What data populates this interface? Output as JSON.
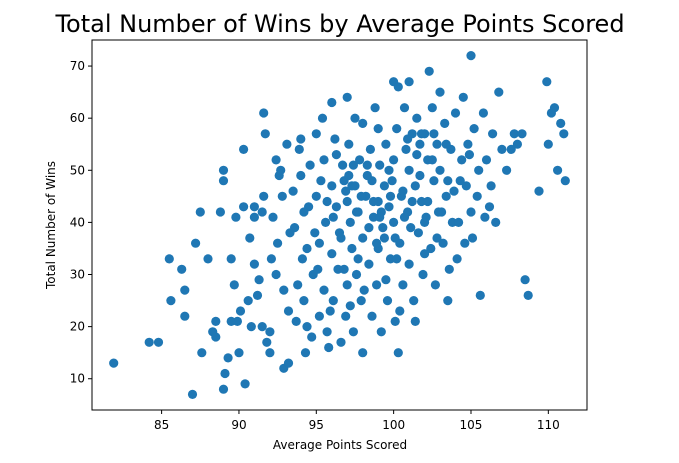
{
  "chart_data": {
    "type": "scatter",
    "title": "Total Number of Wins by Average Points Scored",
    "xlabel": "Average Points Scored",
    "ylabel": "Total Number of Wins",
    "xlim": [
      80.5,
      112.5
    ],
    "ylim": [
      4,
      75
    ],
    "xticks": [
      85,
      90,
      95,
      100,
      105,
      110
    ],
    "yticks": [
      10,
      20,
      30,
      40,
      50,
      60,
      70
    ],
    "grid": false,
    "marker_color": "#1f77b4",
    "points": [
      [
        81.9,
        13
      ],
      [
        84.2,
        17
      ],
      [
        84.8,
        17
      ],
      [
        85.5,
        33
      ],
      [
        85.6,
        25
      ],
      [
        86.3,
        31
      ],
      [
        86.5,
        22
      ],
      [
        86.5,
        27
      ],
      [
        87.0,
        7
      ],
      [
        87.2,
        36
      ],
      [
        87.5,
        42
      ],
      [
        87.6,
        15
      ],
      [
        88.0,
        33
      ],
      [
        88.3,
        19
      ],
      [
        88.5,
        18
      ],
      [
        88.5,
        21
      ],
      [
        88.8,
        42
      ],
      [
        89.0,
        48
      ],
      [
        89.0,
        50
      ],
      [
        89.0,
        8
      ],
      [
        89.1,
        11
      ],
      [
        89.3,
        14
      ],
      [
        89.5,
        21
      ],
      [
        89.5,
        33
      ],
      [
        89.7,
        28
      ],
      [
        89.9,
        21
      ],
      [
        90.0,
        15
      ],
      [
        90.1,
        23
      ],
      [
        90.3,
        54
      ],
      [
        90.3,
        43
      ],
      [
        90.4,
        9
      ],
      [
        90.6,
        25
      ],
      [
        90.8,
        20
      ],
      [
        91.0,
        43
      ],
      [
        91.0,
        41
      ],
      [
        91.0,
        32
      ],
      [
        91.2,
        26
      ],
      [
        91.5,
        20
      ],
      [
        91.5,
        42
      ],
      [
        91.6,
        61
      ],
      [
        91.7,
        57
      ],
      [
        91.8,
        17
      ],
      [
        92.0,
        15
      ],
      [
        92.0,
        19
      ],
      [
        92.2,
        41
      ],
      [
        92.4,
        30
      ],
      [
        92.5,
        36
      ],
      [
        92.6,
        49
      ],
      [
        92.7,
        50
      ],
      [
        92.8,
        45
      ],
      [
        92.9,
        12
      ],
      [
        93.1,
        55
      ],
      [
        93.2,
        23
      ],
      [
        93.2,
        13
      ],
      [
        93.5,
        46
      ],
      [
        93.6,
        39
      ],
      [
        93.8,
        28
      ],
      [
        94.0,
        56
      ],
      [
        94.0,
        49
      ],
      [
        94.1,
        33
      ],
      [
        94.2,
        25
      ],
      [
        94.3,
        15
      ],
      [
        94.4,
        20
      ],
      [
        94.5,
        43
      ],
      [
        94.6,
        51
      ],
      [
        94.8,
        30
      ],
      [
        94.9,
        38
      ],
      [
        95.0,
        57
      ],
      [
        95.0,
        45
      ],
      [
        95.2,
        22
      ],
      [
        95.2,
        36
      ],
      [
        95.4,
        60
      ],
      [
        95.5,
        52
      ],
      [
        95.5,
        27
      ],
      [
        95.6,
        40
      ],
      [
        95.7,
        19
      ],
      [
        95.8,
        16
      ],
      [
        96.0,
        63
      ],
      [
        96.0,
        47
      ],
      [
        96.0,
        34
      ],
      [
        96.1,
        25
      ],
      [
        96.2,
        56
      ],
      [
        96.3,
        43
      ],
      [
        96.4,
        31
      ],
      [
        96.5,
        38
      ],
      [
        96.6,
        17
      ],
      [
        96.7,
        51
      ],
      [
        96.8,
        48
      ],
      [
        96.9,
        22
      ],
      [
        97.0,
        64
      ],
      [
        97.0,
        44
      ],
      [
        97.0,
        28
      ],
      [
        97.1,
        55
      ],
      [
        97.2,
        40
      ],
      [
        97.3,
        35
      ],
      [
        97.4,
        19
      ],
      [
        97.5,
        60
      ],
      [
        97.5,
        47
      ],
      [
        97.6,
        30
      ],
      [
        97.7,
        42
      ],
      [
        97.8,
        52
      ],
      [
        97.9,
        25
      ],
      [
        98.0,
        59
      ],
      [
        98.0,
        37
      ],
      [
        98.0,
        15
      ],
      [
        98.2,
        45
      ],
      [
        98.3,
        49
      ],
      [
        98.4,
        32
      ],
      [
        98.5,
        54
      ],
      [
        98.6,
        22
      ],
      [
        98.7,
        41
      ],
      [
        98.8,
        62
      ],
      [
        98.9,
        28
      ],
      [
        99.0,
        58
      ],
      [
        99.0,
        44
      ],
      [
        99.0,
        35
      ],
      [
        99.1,
        51
      ],
      [
        99.2,
        19
      ],
      [
        99.3,
        39
      ],
      [
        99.4,
        47
      ],
      [
        99.5,
        55
      ],
      [
        99.6,
        25
      ],
      [
        99.7,
        43
      ],
      [
        99.8,
        33
      ],
      [
        99.9,
        48
      ],
      [
        100.0,
        67
      ],
      [
        100.0,
        52
      ],
      [
        100.0,
        40
      ],
      [
        100.1,
        21
      ],
      [
        100.2,
        58
      ],
      [
        100.3,
        66
      ],
      [
        100.3,
        15
      ],
      [
        100.4,
        36
      ],
      [
        100.5,
        45
      ],
      [
        100.6,
        28
      ],
      [
        100.7,
        62
      ],
      [
        100.8,
        54
      ],
      [
        100.9,
        42
      ],
      [
        101.0,
        67
      ],
      [
        101.0,
        50
      ],
      [
        101.0,
        32
      ],
      [
        101.2,
        57
      ],
      [
        101.3,
        25
      ],
      [
        101.4,
        47
      ],
      [
        101.5,
        60
      ],
      [
        101.6,
        38
      ],
      [
        101.7,
        55
      ],
      [
        101.8,
        44
      ],
      [
        101.9,
        30
      ],
      [
        102.0,
        57
      ],
      [
        102.0,
        40
      ],
      [
        102.2,
        52
      ],
      [
        102.3,
        69
      ],
      [
        102.4,
        35
      ],
      [
        102.5,
        62
      ],
      [
        102.6,
        48
      ],
      [
        102.7,
        28
      ],
      [
        102.8,
        55
      ],
      [
        102.9,
        42
      ],
      [
        103.0,
        65
      ],
      [
        103.0,
        50
      ],
      [
        103.2,
        36
      ],
      [
        103.3,
        59
      ],
      [
        103.4,
        45
      ],
      [
        103.5,
        25
      ],
      [
        103.7,
        54
      ],
      [
        103.8,
        40
      ],
      [
        104.0,
        61
      ],
      [
        104.1,
        33
      ],
      [
        104.3,
        48
      ],
      [
        104.5,
        64
      ],
      [
        104.6,
        36
      ],
      [
        104.8,
        55
      ],
      [
        105.0,
        72
      ],
      [
        105.0,
        42
      ],
      [
        105.2,
        58
      ],
      [
        105.4,
        45
      ],
      [
        105.6,
        26
      ],
      [
        105.8,
        61
      ],
      [
        106.0,
        52
      ],
      [
        106.2,
        43
      ],
      [
        106.4,
        57
      ],
      [
        106.6,
        40
      ],
      [
        106.8,
        65
      ],
      [
        107.0,
        54
      ],
      [
        107.3,
        50
      ],
      [
        107.6,
        54
      ],
      [
        107.8,
        57
      ],
      [
        108.0,
        55
      ],
      [
        108.3,
        57
      ],
      [
        108.5,
        29
      ],
      [
        108.7,
        26
      ],
      [
        109.4,
        46
      ],
      [
        109.9,
        67
      ],
      [
        110.0,
        55
      ],
      [
        110.2,
        61
      ],
      [
        110.4,
        62
      ],
      [
        110.6,
        50
      ],
      [
        110.8,
        59
      ],
      [
        111.0,
        57
      ],
      [
        111.1,
        48
      ],
      [
        91.6,
        45
      ],
      [
        92.1,
        33
      ],
      [
        92.9,
        27
      ],
      [
        93.3,
        38
      ],
      [
        93.7,
        21
      ],
      [
        94.2,
        42
      ],
      [
        94.7,
        18
      ],
      [
        95.1,
        31
      ],
      [
        95.3,
        48
      ],
      [
        95.9,
        23
      ],
      [
        96.3,
        53
      ],
      [
        96.6,
        37
      ],
      [
        96.9,
        46
      ],
      [
        97.2,
        24
      ],
      [
        97.4,
        51
      ],
      [
        97.7,
        33
      ],
      [
        97.9,
        45
      ],
      [
        98.1,
        27
      ],
      [
        98.4,
        39
      ],
      [
        98.6,
        48
      ],
      [
        98.9,
        36
      ],
      [
        99.2,
        42
      ],
      [
        99.5,
        29
      ],
      [
        99.7,
        50
      ],
      [
        100.1,
        37
      ],
      [
        100.4,
        23
      ],
      [
        100.6,
        46
      ],
      [
        100.9,
        56
      ],
      [
        101.1,
        39
      ],
      [
        101.4,
        21
      ],
      [
        101.7,
        49
      ],
      [
        102.0,
        34
      ],
      [
        102.2,
        44
      ],
      [
        102.5,
        52
      ],
      [
        102.8,
        37
      ],
      [
        103.1,
        42
      ],
      [
        103.4,
        55
      ],
      [
        103.6,
        31
      ],
      [
        103.9,
        46
      ],
      [
        104.2,
        40
      ],
      [
        104.4,
        52
      ],
      [
        104.7,
        47
      ],
      [
        105.1,
        37
      ],
      [
        105.5,
        50
      ],
      [
        105.9,
        41
      ],
      [
        106.3,
        47
      ],
      [
        90.7,
        37
      ],
      [
        91.3,
        29
      ],
      [
        89.8,
        41
      ],
      [
        92.4,
        52
      ],
      [
        93.9,
        54
      ],
      [
        94.4,
        35
      ],
      [
        95.7,
        44
      ],
      [
        96.1,
        41
      ],
      [
        96.8,
        31
      ],
      [
        97.6,
        42
      ],
      [
        98.3,
        51
      ],
      [
        99.1,
        41
      ],
      [
        99.8,
        45
      ],
      [
        100.7,
        41
      ],
      [
        101.8,
        57
      ],
      [
        102.6,
        57
      ],
      [
        103.5,
        48
      ],
      [
        104.9,
        53
      ],
      [
        97.1,
        49
      ],
      [
        97.3,
        47
      ],
      [
        98.7,
        44
      ],
      [
        99.4,
        37
      ],
      [
        100.2,
        33
      ],
      [
        101.2,
        44
      ],
      [
        101.5,
        53
      ],
      [
        102.1,
        41
      ]
    ]
  }
}
